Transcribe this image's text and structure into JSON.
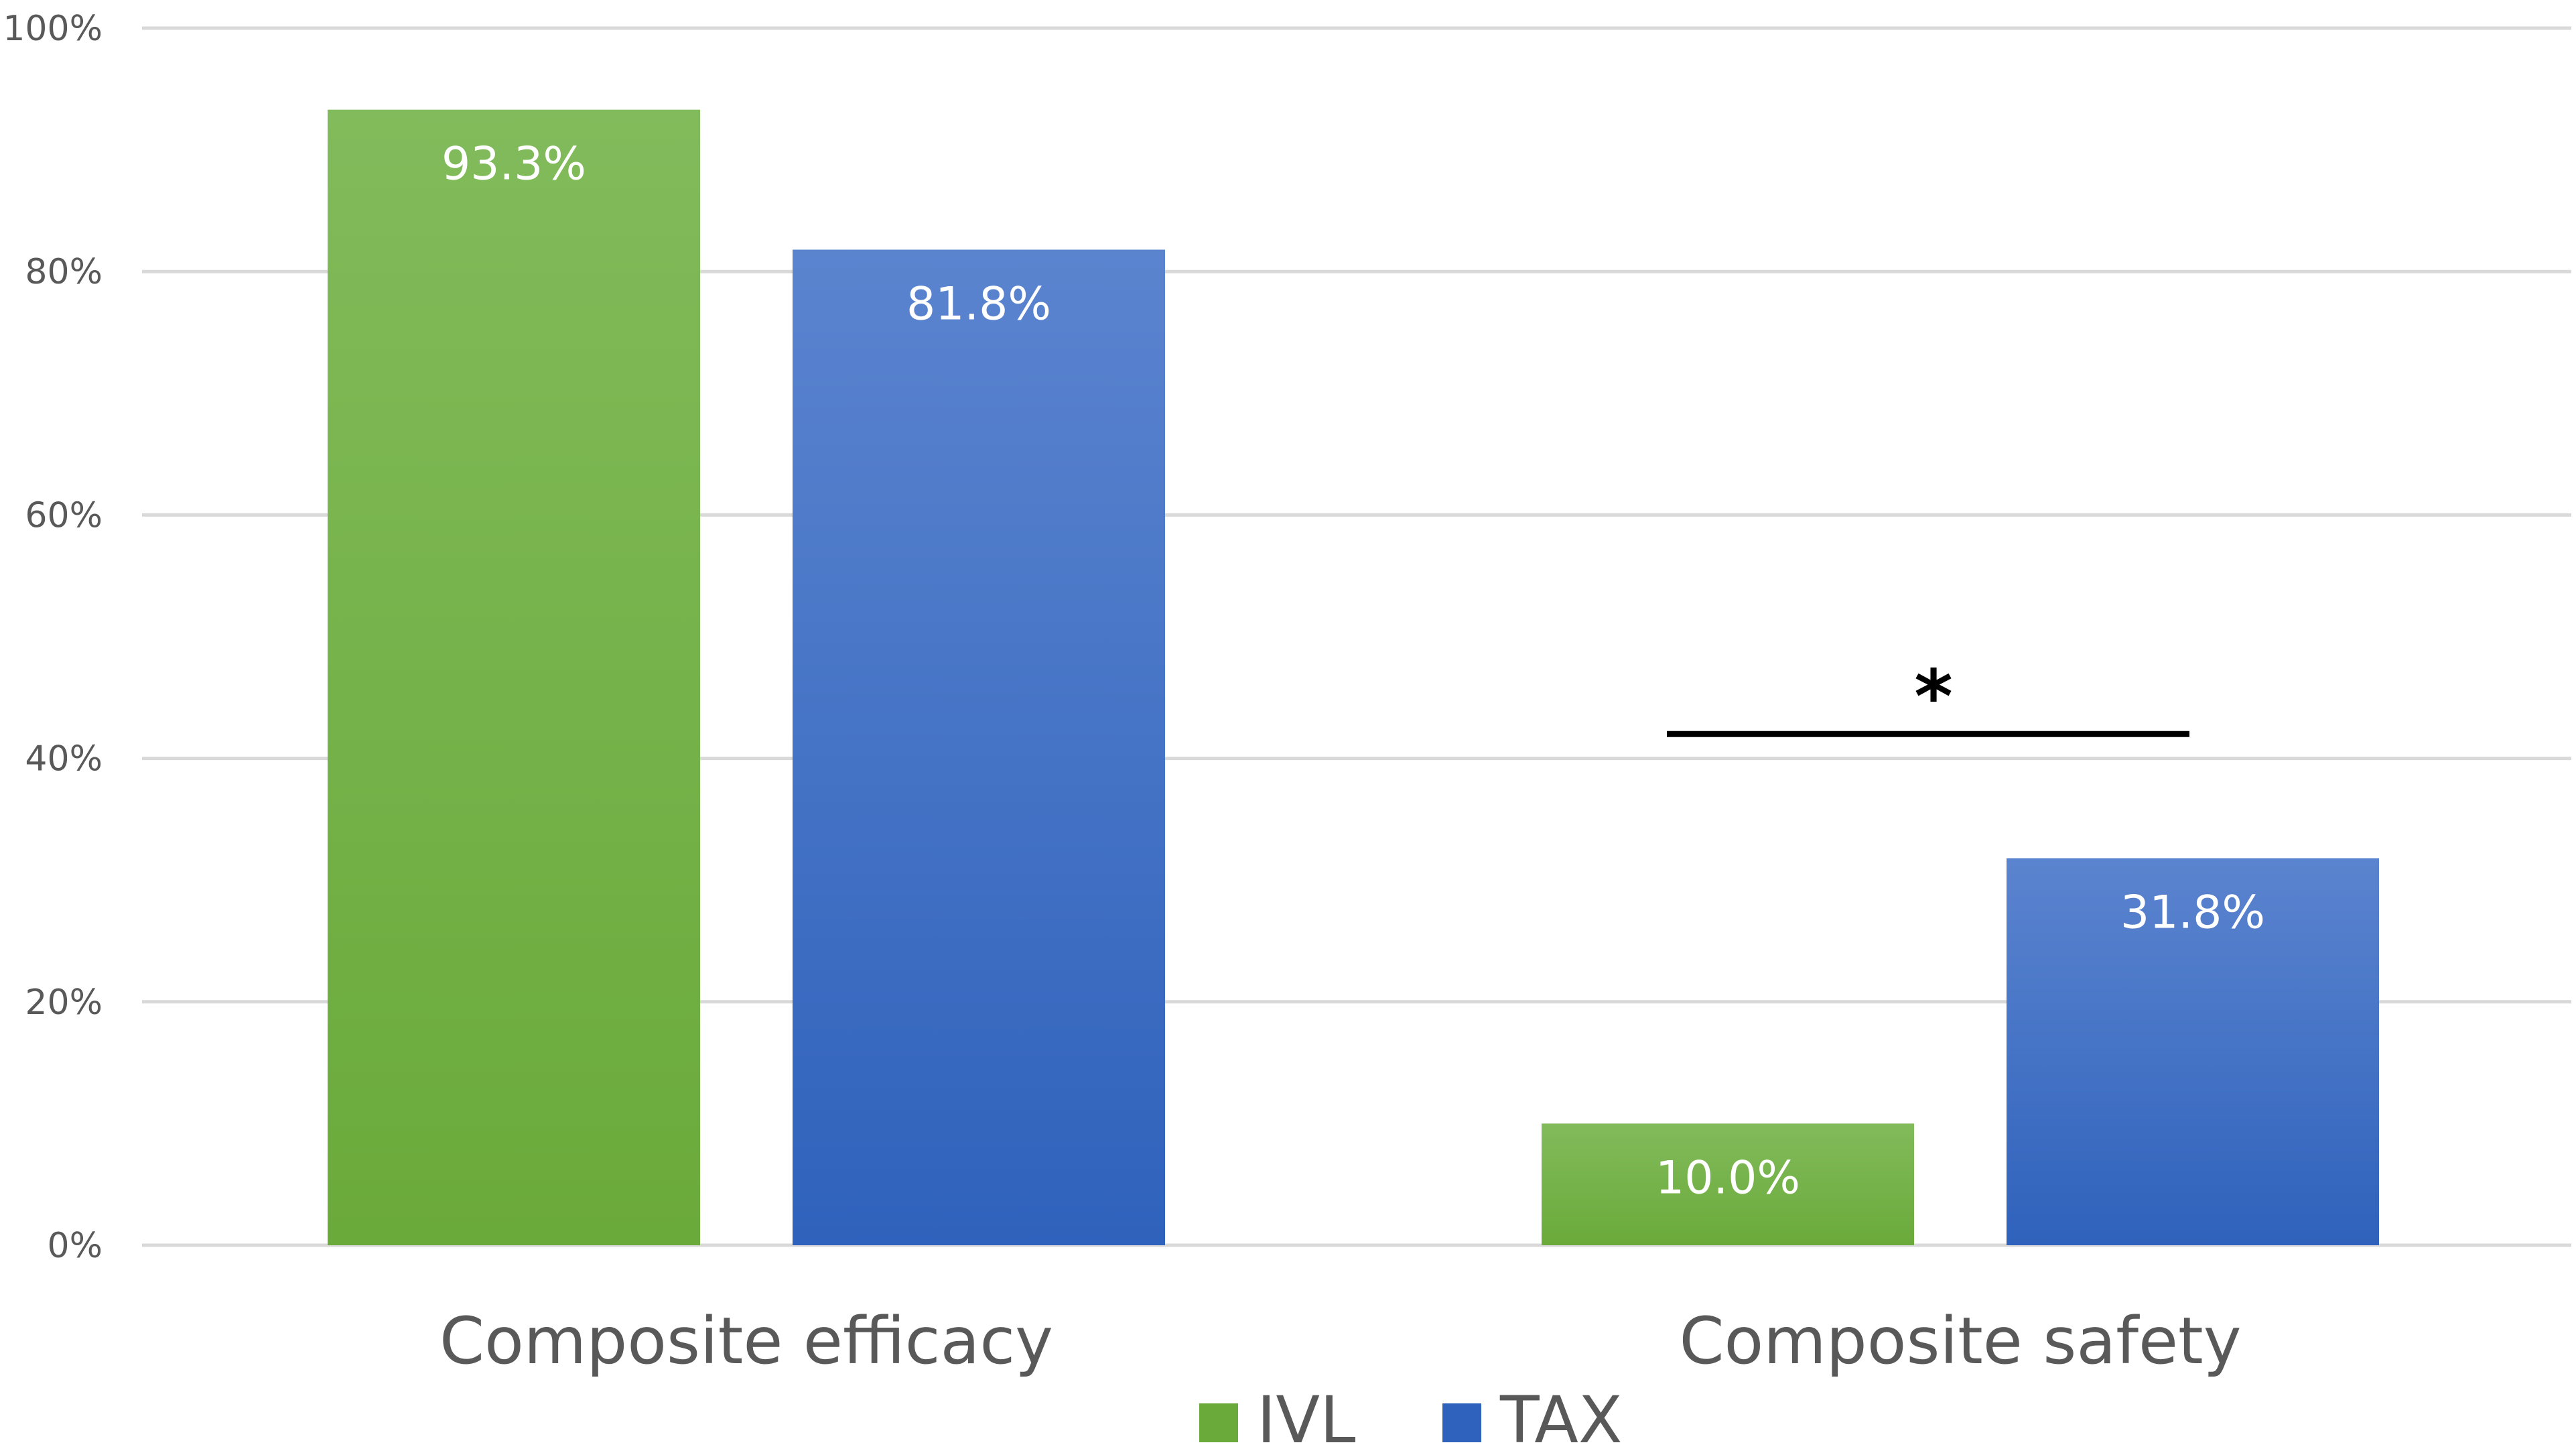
{
  "chart_data": {
    "type": "bar",
    "title": "",
    "xlabel": "",
    "ylabel": "",
    "ylim": [
      0,
      100
    ],
    "y_ticks": [
      "0%",
      "20%",
      "40%",
      "60%",
      "80%",
      "100%"
    ],
    "y_tick_values": [
      0,
      20,
      40,
      60,
      80,
      100
    ],
    "grid": true,
    "legend_position": "bottom",
    "categories": [
      "Composite efficacy",
      "Composite safety"
    ],
    "series": [
      {
        "name": "IVL",
        "color": "#6aaa3a",
        "color_top": "#82bb5b",
        "values": [
          93.3,
          10.0
        ],
        "labels": [
          "93.3%",
          "10.0%"
        ]
      },
      {
        "name": "TAX",
        "color": "#2f62bc",
        "color_top": "#5b84cf",
        "values": [
          81.8,
          31.8
        ],
        "labels": [
          "81.8%",
          "31.8%"
        ]
      }
    ],
    "annotations": [
      {
        "type": "significance",
        "text": "*",
        "category": "Composite safety",
        "y_value": 42
      }
    ]
  }
}
